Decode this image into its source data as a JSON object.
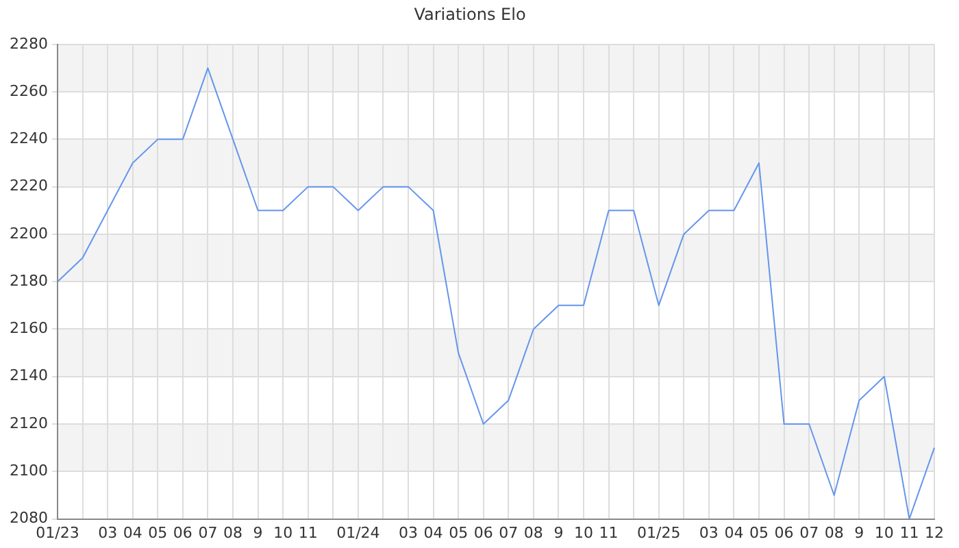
{
  "chart_data": {
    "type": "line",
    "title": "Variations Elo",
    "categories": [
      "01/23",
      null,
      "03",
      "04",
      "05",
      "06",
      "07",
      "08",
      "9",
      "10",
      "11",
      null,
      "01/24",
      null,
      "03",
      "04",
      "05",
      "06",
      "07",
      "08",
      "9",
      "10",
      "11",
      null,
      "01/25",
      null,
      "03",
      "04",
      "05",
      "06",
      "07",
      "08",
      "9",
      "10",
      "11",
      "12"
    ],
    "series": [
      {
        "color": "#6495ed",
        "values": [
          2180,
          2190,
          2210,
          2230,
          2240,
          2240,
          2270,
          2240,
          2210,
          2210,
          2220,
          2220,
          2210,
          2220,
          2220,
          2210,
          2150,
          2120,
          2130,
          2160,
          2170,
          2170,
          2210,
          2210,
          2170,
          2200,
          2210,
          2210,
          2230,
          2120,
          2120,
          2090,
          2130,
          2140,
          2080,
          2110
        ]
      }
    ],
    "ylim": [
      2080,
      2280
    ],
    "yticks": [
      2080,
      2100,
      2120,
      2140,
      2160,
      2180,
      2200,
      2220,
      2240,
      2260,
      2280
    ],
    "grid": true,
    "legend": false,
    "marker": "none",
    "line_style": "solid"
  }
}
